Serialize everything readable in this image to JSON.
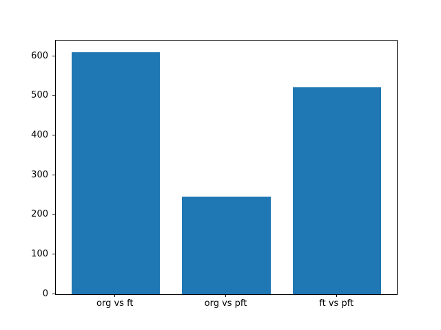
{
  "chart_data": {
    "type": "bar",
    "categories": [
      "org vs ft",
      "org vs pft",
      "ft vs pft"
    ],
    "values": [
      611,
      246,
      523
    ],
    "title": "",
    "xlabel": "",
    "ylabel": "",
    "ylim": [
      0,
      640
    ],
    "yticks": [
      0,
      100,
      200,
      300,
      400,
      500,
      600
    ],
    "bar_color": "#1f77b4",
    "spine_color": "#000000",
    "background_color": "#ffffff",
    "grid": false,
    "legend": null
  }
}
